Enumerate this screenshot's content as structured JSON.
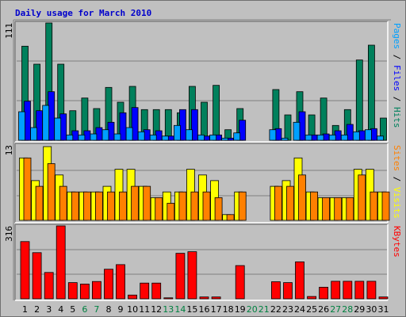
{
  "chart_data": {
    "type": "bar",
    "title": "Daily usage for March 2010",
    "categories": [
      "1",
      "2",
      "3",
      "4",
      "5",
      "6",
      "7",
      "8",
      "9",
      "10",
      "11",
      "12",
      "13",
      "14",
      "15",
      "16",
      "17",
      "18",
      "19",
      "20",
      "21",
      "22",
      "23",
      "24",
      "25",
      "26",
      "27",
      "28",
      "29",
      "30",
      "31"
    ],
    "weekend_days": [
      "6",
      "7",
      "13",
      "14",
      "20",
      "21",
      "27",
      "28"
    ],
    "panels": [
      {
        "id": "top",
        "max_label": "111",
        "ymax": 111,
        "right_label_parts": [
          {
            "text": "Pages",
            "color": "#00a0ff"
          },
          {
            "text": " / ",
            "color": "#000000"
          },
          {
            "text": "Files",
            "color": "#0000ff"
          },
          {
            "text": " / ",
            "color": "#000000"
          },
          {
            "text": "Hits",
            "color": "#00805c"
          }
        ],
        "series": [
          {
            "name": "Hits",
            "color": "#00805c",
            "values": [
              89,
              72,
              111,
              72,
              28,
              40,
              30,
              50,
              36,
              51,
              29,
              29,
              29,
              26,
              51,
              36,
              52,
              10,
              30,
              0,
              0,
              48,
              24,
              46,
              24,
              40,
              14,
              29,
              76,
              90,
              21
            ]
          },
          {
            "name": "Files",
            "color": "#0000ff",
            "values": [
              37,
              28,
              46,
              25,
              9,
              9,
              12,
              17,
              26,
              31,
              10,
              9,
              4,
              29,
              29,
              4,
              5,
              2,
              19,
              0,
              0,
              11,
              0,
              27,
              5,
              6,
              9,
              15,
              9,
              11,
              0
            ]
          },
          {
            "name": "Pages",
            "color": "#00a0ff",
            "values": [
              27,
              12,
              33,
              21,
              5,
              5,
              6,
              10,
              6,
              12,
              8,
              5,
              4,
              14,
              10,
              5,
              5,
              2,
              7,
              0,
              0,
              10,
              2,
              17,
              5,
              5,
              5,
              5,
              8,
              10,
              4
            ]
          }
        ]
      },
      {
        "id": "middle",
        "max_label": "13",
        "ymax": 13,
        "right_label_parts": [
          {
            "text": "Sites",
            "color": "#ff8000"
          },
          {
            "text": " / ",
            "color": "#000000"
          },
          {
            "text": "Visits",
            "color": "#ffff00"
          }
        ],
        "series": [
          {
            "name": "Visits",
            "color": "#ffff00",
            "values": [
              11,
              7,
              13,
              8,
              5,
              5,
              5,
              6,
              9,
              9,
              6,
              4,
              5,
              5,
              9,
              8,
              7,
              1,
              5,
              0,
              0,
              6,
              7,
              11,
              5,
              4,
              4,
              4,
              9,
              9,
              5
            ]
          },
          {
            "name": "Sites",
            "color": "#ff8000",
            "values": [
              11,
              6,
              10,
              6,
              5,
              5,
              5,
              5,
              5,
              6,
              6,
              4,
              3,
              5,
              5,
              5,
              4,
              1,
              5,
              0,
              0,
              6,
              6,
              8,
              5,
              4,
              4,
              4,
              8,
              5,
              5
            ]
          }
        ]
      },
      {
        "id": "bottom",
        "max_label": "316",
        "ymax": 316,
        "right_label_parts": [
          {
            "text": "KBytes",
            "color": "#ff0000"
          }
        ],
        "series": [
          {
            "name": "KBytes",
            "color": "#ff0000",
            "values": [
              248,
              200,
              114,
              316,
              70,
              64,
              75,
              128,
              148,
              16,
              68,
              68,
              4,
              197,
              204,
              8,
              8,
              0,
              144,
              0,
              0,
              74,
              70,
              160,
              10,
              50,
              76,
              76,
              76,
              76,
              8
            ]
          }
        ]
      }
    ]
  }
}
